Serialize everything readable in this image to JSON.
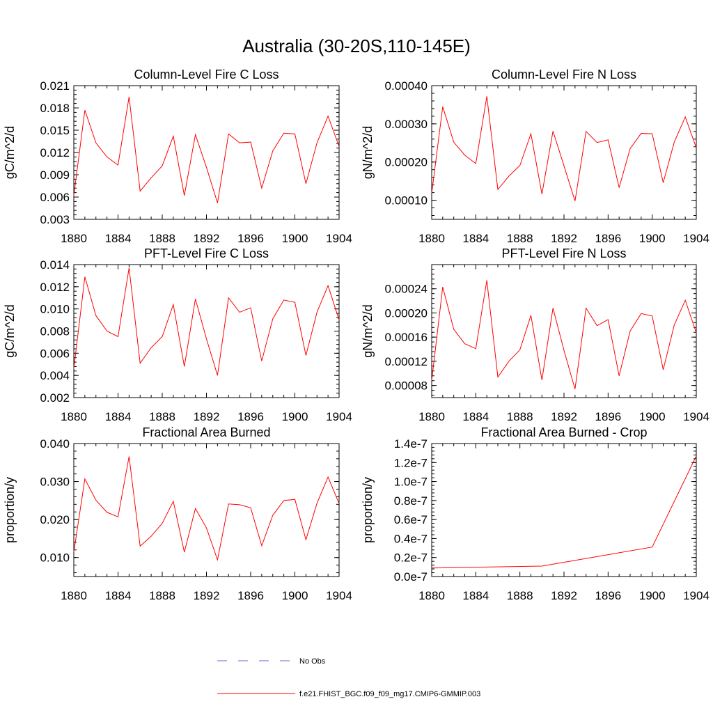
{
  "figure": {
    "title": "Australia (30-20S,110-145E)",
    "legend": {
      "placement": "bottom-center",
      "entries": [
        {
          "label": "No Obs",
          "color": "#6a6acd",
          "style": "dashed"
        },
        {
          "label": "f.e21.FHIST_BGC.f09_f09_mg17.CMIP6-GMMIP.003",
          "color": "#ff0000",
          "style": "solid"
        }
      ]
    }
  },
  "chart_data": [
    {
      "type": "line",
      "title": "Column-Level Fire C Loss",
      "xlabel": "",
      "ylabel": "gC/m^2/d",
      "xlim": [
        1880,
        1904
      ],
      "ylim": [
        0.003,
        0.021
      ],
      "xticks": [
        1880,
        1884,
        1888,
        1892,
        1896,
        1900,
        1904
      ],
      "yticks": [
        0.003,
        0.006,
        0.009,
        0.012,
        0.015,
        0.018,
        0.021
      ],
      "ytick_labels": [
        "0.003",
        "0.006",
        "0.009",
        "0.012",
        "0.015",
        "0.018",
        "0.021"
      ],
      "series": [
        {
          "name": "f.e21.FHIST_BGC.f09_f09_mg17.CMIP6-GMMIP.003",
          "color": "#ff0000",
          "x": [
            1880,
            1881,
            1882,
            1883,
            1884,
            1885,
            1886,
            1887,
            1888,
            1889,
            1890,
            1891,
            1892,
            1893,
            1894,
            1895,
            1896,
            1897,
            1898,
            1899,
            1900,
            1901,
            1902,
            1903,
            1904
          ],
          "values": [
            0.0062,
            0.0177,
            0.0133,
            0.0114,
            0.0103,
            0.0195,
            0.0068,
            0.0086,
            0.0102,
            0.0142,
            0.0062,
            0.0144,
            0.01,
            0.0052,
            0.0145,
            0.0133,
            0.0134,
            0.0072,
            0.0122,
            0.0146,
            0.0145,
            0.0078,
            0.0133,
            0.0169,
            0.0128
          ]
        }
      ]
    },
    {
      "type": "line",
      "title": "Column-Level Fire N Loss",
      "xlabel": "",
      "ylabel": "gN/m^2/d",
      "xlim": [
        1880,
        1904
      ],
      "ylim": [
        5e-05,
        0.0004
      ],
      "xticks": [
        1880,
        1884,
        1888,
        1892,
        1896,
        1900,
        1904
      ],
      "yticks": [
        0.0001,
        0.0002,
        0.0003,
        0.0004
      ],
      "ytick_labels": [
        "0.00010",
        "0.00020",
        "0.00030",
        "0.00040"
      ],
      "series": [
        {
          "name": "f.e21.FHIST_BGC.f09_f09_mg17.CMIP6-GMMIP.003",
          "color": "#ff0000",
          "x": [
            1880,
            1881,
            1882,
            1883,
            1884,
            1885,
            1886,
            1887,
            1888,
            1889,
            1890,
            1891,
            1892,
            1893,
            1894,
            1895,
            1896,
            1897,
            1898,
            1899,
            1900,
            1901,
            1902,
            1903,
            1904
          ],
          "values": [
            0.000118,
            0.000345,
            0.000252,
            0.000218,
            0.000196,
            0.000372,
            0.000128,
            0.000163,
            0.000191,
            0.000274,
            0.000116,
            0.000281,
            0.00019,
            9.8e-05,
            0.00028,
            0.000251,
            0.000258,
            0.000133,
            0.000235,
            0.000275,
            0.000274,
            0.000146,
            0.000252,
            0.000318,
            0.000237
          ]
        }
      ]
    },
    {
      "type": "line",
      "title": "PFT-Level Fire C Loss",
      "xlabel": "",
      "ylabel": "gC/m^2/d",
      "xlim": [
        1880,
        1904
      ],
      "ylim": [
        0.002,
        0.014
      ],
      "xticks": [
        1880,
        1884,
        1888,
        1892,
        1896,
        1900,
        1904
      ],
      "yticks": [
        0.002,
        0.004,
        0.006,
        0.008,
        0.01,
        0.012,
        0.014
      ],
      "ytick_labels": [
        "0.002",
        "0.004",
        "0.006",
        "0.008",
        "0.010",
        "0.012",
        "0.014"
      ],
      "series": [
        {
          "name": "f.e21.FHIST_BGC.f09_f09_mg17.CMIP6-GMMIP.003",
          "color": "#ff0000",
          "x": [
            1880,
            1881,
            1882,
            1883,
            1884,
            1885,
            1886,
            1887,
            1888,
            1889,
            1890,
            1891,
            1892,
            1893,
            1894,
            1895,
            1896,
            1897,
            1898,
            1899,
            1900,
            1901,
            1902,
            1903,
            1904
          ],
          "values": [
            0.0046,
            0.0129,
            0.0094,
            0.008,
            0.0075,
            0.0137,
            0.0051,
            0.0065,
            0.0075,
            0.0104,
            0.0048,
            0.0109,
            0.0073,
            0.004,
            0.011,
            0.0097,
            0.0101,
            0.0053,
            0.0091,
            0.0108,
            0.0106,
            0.0058,
            0.0097,
            0.0121,
            0.009
          ]
        }
      ]
    },
    {
      "type": "line",
      "title": "PFT-Level Fire N Loss",
      "xlabel": "",
      "ylabel": "gN/m^2/d",
      "xlim": [
        1880,
        1904
      ],
      "ylim": [
        6e-05,
        0.00028
      ],
      "xticks": [
        1880,
        1884,
        1888,
        1892,
        1896,
        1900,
        1904
      ],
      "yticks": [
        8e-05,
        0.00012,
        0.00016,
        0.0002,
        0.00024
      ],
      "ytick_labels": [
        "0.00008",
        "0.00012",
        "0.00016",
        "0.00020",
        "0.00024"
      ],
      "series": [
        {
          "name": "f.e21.FHIST_BGC.f09_f09_mg17.CMIP6-GMMIP.003",
          "color": "#ff0000",
          "x": [
            1880,
            1881,
            1882,
            1883,
            1884,
            1885,
            1886,
            1887,
            1888,
            1889,
            1890,
            1891,
            1892,
            1893,
            1894,
            1895,
            1896,
            1897,
            1898,
            1899,
            1900,
            1901,
            1902,
            1903,
            1904
          ],
          "values": [
            8.8e-05,
            0.000243,
            0.000173,
            0.000149,
            0.000141,
            0.000254,
            9.4e-05,
            0.00012,
            0.000139,
            0.000196,
            8.9e-05,
            0.000208,
            0.000138,
            7.4e-05,
            0.000208,
            0.000179,
            0.000189,
            9.6e-05,
            0.00017,
            0.000199,
            0.000195,
            0.000106,
            0.00018,
            0.000221,
            0.000167
          ]
        }
      ]
    },
    {
      "type": "line",
      "title": "Fractional Area Burned",
      "xlabel": "",
      "ylabel": "proportion/y",
      "xlim": [
        1880,
        1904
      ],
      "ylim": [
        0.005,
        0.04
      ],
      "xticks": [
        1880,
        1884,
        1888,
        1892,
        1896,
        1900,
        1904
      ],
      "yticks": [
        0.01,
        0.02,
        0.03,
        0.04
      ],
      "ytick_labels": [
        "0.010",
        "0.020",
        "0.030",
        "0.040"
      ],
      "series": [
        {
          "name": "f.e21.FHIST_BGC.f09_f09_mg17.CMIP6-GMMIP.003",
          "color": "#ff0000",
          "x": [
            1880,
            1881,
            1882,
            1883,
            1884,
            1885,
            1886,
            1887,
            1888,
            1889,
            1890,
            1891,
            1892,
            1893,
            1894,
            1895,
            1896,
            1897,
            1898,
            1899,
            1900,
            1901,
            1902,
            1903,
            1904
          ],
          "values": [
            0.0114,
            0.0307,
            0.0251,
            0.0219,
            0.0207,
            0.0366,
            0.013,
            0.0156,
            0.019,
            0.0248,
            0.0114,
            0.0229,
            0.0178,
            0.0094,
            0.0241,
            0.0239,
            0.0231,
            0.0131,
            0.0211,
            0.025,
            0.0253,
            0.0147,
            0.0243,
            0.0312,
            0.0242
          ]
        }
      ]
    },
    {
      "type": "line",
      "title": "Fractional Area Burned - Crop",
      "xlabel": "",
      "ylabel": "proportion/y",
      "xlim": [
        1880,
        1904
      ],
      "ylim": [
        0,
        1.4e-07
      ],
      "xticks": [
        1880,
        1884,
        1888,
        1892,
        1896,
        1900,
        1904
      ],
      "yticks": [
        0,
        2e-08,
        4e-08,
        6e-08,
        8e-08,
        1e-07,
        1.2e-07,
        1.4e-07
      ],
      "ytick_labels": [
        "0.0e-7",
        "0.2e-7",
        "0.4e-7",
        "0.6e-7",
        "0.8e-7",
        "1.0e-7",
        "1.2e-7",
        "1.4e-7"
      ],
      "series": [
        {
          "name": "f.e21.FHIST_BGC.f09_f09_mg17.CMIP6-GMMIP.003",
          "color": "#ff0000",
          "x": [
            1880,
            1890,
            1900,
            1904
          ],
          "values": [
            9e-09,
            1.1e-08,
            3.1e-08,
            1.27e-07
          ]
        }
      ]
    }
  ]
}
